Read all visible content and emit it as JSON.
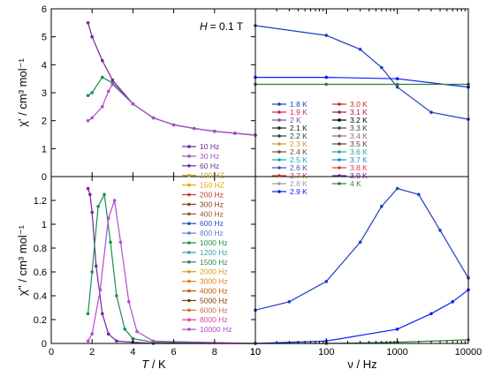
{
  "chart_data": [
    {
      "panel": "top-left",
      "type": "line",
      "annotation_prefix": "H",
      "annotation_value": "= 0.1 T",
      "ylabel": "χ' / cm³ mol⁻¹",
      "xlim": [
        0,
        10
      ],
      "ylim": [
        0,
        6
      ],
      "yticks": [
        "0",
        "1",
        "2",
        "3",
        "4",
        "5",
        "6"
      ],
      "legend_placement": "bottom-right",
      "series": [
        {
          "name": "10 Hz",
          "color": "#7a1fa2",
          "x": [
            1.8,
            2.0,
            2.5,
            3,
            4,
            5,
            6,
            7,
            8,
            9,
            10
          ],
          "values": [
            5.5,
            5.0,
            4.15,
            3.45,
            2.6,
            2.1,
            1.85,
            1.72,
            1.62,
            1.55,
            1.48
          ]
        },
        {
          "name": "1000 Hz",
          "color": "#1a8f4a",
          "x": [
            1.8,
            2.0,
            2.5,
            3,
            4,
            5,
            6,
            7,
            8,
            9,
            10
          ],
          "values": [
            2.9,
            3.0,
            3.55,
            3.35,
            2.6,
            2.1,
            1.85,
            1.72,
            1.62,
            1.55,
            1.48
          ]
        },
        {
          "name": "10000 Hz",
          "color": "#b04ad0",
          "x": [
            1.8,
            2.0,
            2.5,
            2.8,
            3,
            4,
            5,
            6,
            7,
            8,
            9,
            10
          ],
          "values": [
            2.0,
            2.1,
            2.5,
            3.05,
            3.3,
            2.6,
            2.1,
            1.85,
            1.72,
            1.62,
            1.55,
            1.48
          ]
        }
      ],
      "legend": [
        {
          "label": "10 Hz",
          "color": "#7a1fa2"
        },
        {
          "label": "30 Hz",
          "color": "#9b59b6"
        },
        {
          "label": "60 Hz",
          "color": "#5b3a8a"
        },
        {
          "label": "100 HZ",
          "color": "#c0a020"
        },
        {
          "label": "150 HZ",
          "color": "#e6a700"
        },
        {
          "label": "200 Hz",
          "color": "#c0392b"
        },
        {
          "label": "300 Hz",
          "color": "#8b4513"
        },
        {
          "label": "400 Hz",
          "color": "#a0522d"
        },
        {
          "label": "600 Hz",
          "color": "#1f4fd1"
        },
        {
          "label": "800 Hz",
          "color": "#5a7fd1"
        },
        {
          "label": "1000 Hz",
          "color": "#1a8f4a"
        },
        {
          "label": "1200 Hz",
          "color": "#3a9fb5"
        },
        {
          "label": "1500 Hz",
          "color": "#2e8b57"
        },
        {
          "label": "2000 Hz",
          "color": "#d4a017"
        },
        {
          "label": "3000 Hz",
          "color": "#e67e22"
        },
        {
          "label": "4000 Hz",
          "color": "#d35400"
        },
        {
          "label": "5000 Hz",
          "color": "#7b3f00"
        },
        {
          "label": "6000 Hz",
          "color": "#c86f3a"
        },
        {
          "label": "8000 Hz",
          "color": "#e040a0"
        },
        {
          "label": "10000 Hz",
          "color": "#b04ad0"
        }
      ]
    },
    {
      "panel": "bottom-left",
      "type": "line",
      "xlabel_italic": "T",
      "xlabel_rest": " / K",
      "ylabel": "χ'' / cm³ mol⁻¹",
      "xlim": [
        0,
        10
      ],
      "ylim": [
        0,
        1.4
      ],
      "xticks": [
        "0",
        "2",
        "4",
        "6",
        "8",
        "10"
      ],
      "yticks": [
        "0",
        "0.2",
        "0.4",
        "0.6",
        "0.8",
        "1",
        "1.2"
      ],
      "series": [
        {
          "name": "10 Hz",
          "color": "#7a1fa2",
          "x": [
            1.8,
            1.9,
            2.0,
            2.2,
            2.5,
            2.8,
            3.2,
            4,
            5,
            10
          ],
          "values": [
            1.3,
            1.25,
            1.1,
            0.65,
            0.25,
            0.08,
            0.02,
            0.01,
            0,
            0
          ]
        },
        {
          "name": "1000 Hz",
          "color": "#1a8f4a",
          "x": [
            1.8,
            2.0,
            2.3,
            2.6,
            2.9,
            3.2,
            3.6,
            4,
            5,
            10
          ],
          "values": [
            0.25,
            0.6,
            1.15,
            1.25,
            0.85,
            0.4,
            0.12,
            0.04,
            0.01,
            0
          ]
        },
        {
          "name": "10000 Hz",
          "color": "#b04ad0",
          "x": [
            1.8,
            2.0,
            2.4,
            2.8,
            3.1,
            3.4,
            3.8,
            4.2,
            5,
            10
          ],
          "values": [
            0.02,
            0.08,
            0.45,
            1.05,
            1.2,
            0.85,
            0.35,
            0.1,
            0.02,
            0
          ]
        }
      ]
    },
    {
      "panel": "top-right",
      "type": "line",
      "xscale": "log",
      "xlim": [
        10,
        10000
      ],
      "ylim": [
        0,
        6
      ],
      "legend_placement": "bottom-left",
      "series": [
        {
          "name": "1.8 K",
          "color": "#1f3fbf",
          "x": [
            10,
            100,
            300,
            600,
            1000,
            3000,
            10000
          ],
          "values": [
            5.4,
            5.05,
            4.55,
            3.9,
            3.2,
            2.3,
            2.05
          ]
        },
        {
          "name": "2.9 K",
          "color": "#0a1aff",
          "x": [
            10,
            100,
            1000,
            10000
          ],
          "values": [
            3.55,
            3.55,
            3.5,
            3.2
          ]
        },
        {
          "name": "4 K",
          "color": "#2e7d32",
          "x": [
            10,
            100,
            1000,
            10000
          ],
          "values": [
            3.3,
            3.3,
            3.3,
            3.3
          ]
        }
      ],
      "legend": [
        {
          "label": "1.8 K",
          "color": "#1f3fbf"
        },
        {
          "label": "1.9 K",
          "color": "#d81b60"
        },
        {
          "label": "2 K",
          "color": "#8e44ad"
        },
        {
          "label": "2.1 K",
          "color": "#222222"
        },
        {
          "label": "2.2 K",
          "color": "#2c3e50"
        },
        {
          "label": "2.3 K",
          "color": "#c9a227"
        },
        {
          "label": "2.4 K",
          "color": "#6d4c41"
        },
        {
          "label": "2.5 K",
          "color": "#00acc1"
        },
        {
          "label": "2.6 K",
          "color": "#3f51b5"
        },
        {
          "label": "2.7 K",
          "color": "#c0392b"
        },
        {
          "label": "2.8 K",
          "color": "#9e9e9e"
        },
        {
          "label": "2.9 K",
          "color": "#0a1aff"
        },
        {
          "label": "3.0 K",
          "color": "#c62828"
        },
        {
          "label": "3.1 K",
          "color": "#ad1457"
        },
        {
          "label": "3.2 K",
          "color": "#000000"
        },
        {
          "label": "3.3 K",
          "color": "#37474f"
        },
        {
          "label": "3.4 K",
          "color": "#8d6e63"
        },
        {
          "label": "3.5 K",
          "color": "#5d4037"
        },
        {
          "label": "3.6 K",
          "color": "#26a69a"
        },
        {
          "label": "3.7 K",
          "color": "#1e88e5"
        },
        {
          "label": "3.8 K",
          "color": "#e53935"
        },
        {
          "label": "3.9 K",
          "color": "#6a1b9a"
        },
        {
          "label": "4 K",
          "color": "#2e7d32"
        }
      ]
    },
    {
      "panel": "bottom-right",
      "type": "line",
      "xscale": "log",
      "xlabel": "ν / Hz",
      "xlim": [
        10,
        10000
      ],
      "ylim": [
        0,
        1.4
      ],
      "xticks": [
        "10",
        "100",
        "1000",
        "10000"
      ],
      "series": [
        {
          "name": "1.8 K",
          "color": "#1f3fbf",
          "x": [
            10,
            30,
            100,
            300,
            600,
            1000,
            2000,
            4000,
            10000
          ],
          "values": [
            0.28,
            0.35,
            0.52,
            0.85,
            1.15,
            1.3,
            1.25,
            0.95,
            0.55
          ]
        },
        {
          "name": "2.9 K",
          "color": "#0a1aff",
          "x": [
            10,
            100,
            1000,
            3000,
            6000,
            10000
          ],
          "values": [
            0.0,
            0.02,
            0.12,
            0.25,
            0.35,
            0.45
          ]
        },
        {
          "name": "4 K",
          "color": "#2e7d32",
          "x": [
            10,
            100,
            1000,
            10000
          ],
          "values": [
            0.0,
            0.0,
            0.01,
            0.03
          ]
        }
      ]
    }
  ]
}
